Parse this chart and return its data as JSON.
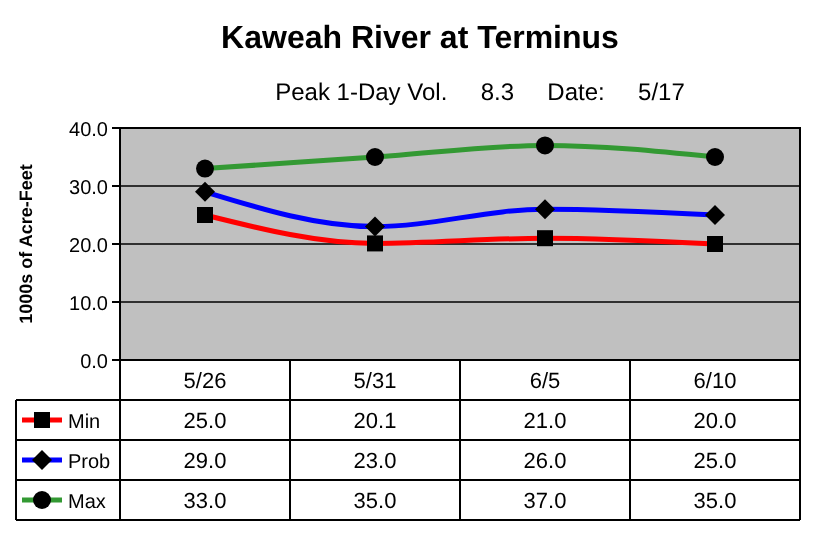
{
  "chart_data": {
    "type": "line",
    "title": "Kaweah River at Terminus",
    "subtitle": "Peak 1-Day Vol.     8.3     Date:     5/17",
    "ylabel": "1000s of Acre-Feet",
    "categories": [
      "5/26",
      "5/31",
      "6/5",
      "6/10"
    ],
    "series": [
      {
        "name": "Min",
        "color": "#ff0000",
        "marker": "square",
        "values": [
          25.0,
          20.1,
          21.0,
          20.0
        ],
        "value_labels": [
          "25.0",
          "20.1",
          "21.0",
          "20.0"
        ]
      },
      {
        "name": "Prob",
        "color": "#0000ff",
        "marker": "diamond",
        "values": [
          29.0,
          23.0,
          26.0,
          25.0
        ],
        "value_labels": [
          "29.0",
          "23.0",
          "26.0",
          "25.0"
        ]
      },
      {
        "name": "Max",
        "color": "#339933",
        "marker": "circle",
        "values": [
          33.0,
          35.0,
          37.0,
          35.0
        ],
        "value_labels": [
          "33.0",
          "35.0",
          "37.0",
          "35.0"
        ]
      }
    ],
    "ylim": [
      0,
      40
    ],
    "yticks": [
      {
        "value": 0,
        "label": "0.0"
      },
      {
        "value": 10,
        "label": "10.0"
      },
      {
        "value": 20,
        "label": "20.0"
      },
      {
        "value": 30,
        "label": "30.0"
      },
      {
        "value": 40,
        "label": "40.0"
      }
    ],
    "grid": "y",
    "legend": "bottom"
  }
}
